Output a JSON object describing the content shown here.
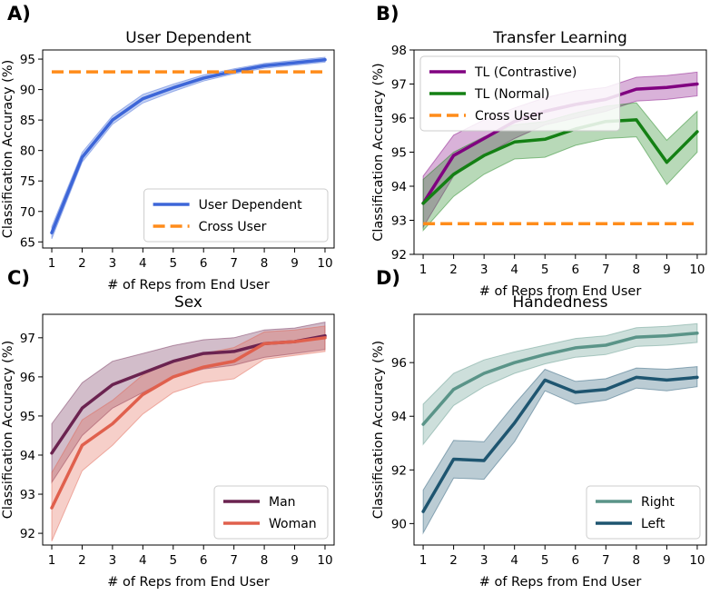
{
  "chart_data": [
    {
      "panel": "A)",
      "type": "line",
      "title": "User Dependent",
      "xlabel": "# of Reps from End User",
      "ylabel": "Classification Accuracy (%)",
      "xlim": [
        0.7,
        10.3
      ],
      "ylim": [
        64,
        96.5
      ],
      "xticks": [
        1,
        2,
        3,
        4,
        5,
        6,
        7,
        8,
        9,
        10
      ],
      "yticks": [
        65,
        70,
        75,
        80,
        85,
        90,
        95
      ],
      "legend_position": "lower-right",
      "x": [
        1,
        2,
        3,
        4,
        5,
        6,
        7,
        8,
        9,
        10
      ],
      "series": [
        {
          "name": "User Dependent",
          "color": "#3d66d8",
          "style": "solid",
          "values": [
            66.5,
            78.9,
            85.0,
            88.5,
            90.3,
            91.9,
            93.0,
            93.9,
            94.4,
            94.9
          ],
          "lower": [
            65.5,
            78.1,
            84.3,
            87.8,
            89.7,
            91.4,
            92.6,
            93.5,
            94.0,
            94.5
          ],
          "upper": [
            67.5,
            79.7,
            85.7,
            89.2,
            90.9,
            92.4,
            93.4,
            94.3,
            94.8,
            95.3
          ]
        },
        {
          "name": "Cross User",
          "color": "#ff8c1a",
          "style": "dashed",
          "values": [
            92.9,
            92.9,
            92.9,
            92.9,
            92.9,
            92.9,
            92.9,
            92.9,
            92.9,
            92.9
          ]
        }
      ]
    },
    {
      "panel": "B)",
      "type": "line",
      "title": "Transfer Learning",
      "xlabel": "# of Reps from End User",
      "ylabel": "Classification Accuracy (%)",
      "xlim": [
        0.7,
        10.3
      ],
      "ylim": [
        92,
        98
      ],
      "xticks": [
        1,
        2,
        3,
        4,
        5,
        6,
        7,
        8,
        9,
        10
      ],
      "yticks": [
        92,
        93,
        94,
        95,
        96,
        97,
        98
      ],
      "legend_position": "upper-left",
      "x": [
        1,
        2,
        3,
        4,
        5,
        6,
        7,
        8,
        9,
        10
      ],
      "series": [
        {
          "name": "TL (Contrastive)",
          "color": "#800080",
          "style": "solid",
          "values": [
            93.5,
            94.9,
            95.4,
            95.9,
            96.2,
            96.4,
            96.55,
            96.85,
            96.9,
            97.0
          ],
          "lower": [
            92.8,
            94.3,
            94.9,
            95.4,
            95.8,
            96.0,
            96.2,
            96.5,
            96.55,
            96.65
          ],
          "upper": [
            94.3,
            95.5,
            95.95,
            96.3,
            96.6,
            96.8,
            96.9,
            97.2,
            97.25,
            97.35
          ]
        },
        {
          "name": "TL (Normal)",
          "color": "#148014",
          "style": "solid",
          "values": [
            93.5,
            94.35,
            94.9,
            95.3,
            95.38,
            95.68,
            95.9,
            95.95,
            94.7,
            95.6
          ],
          "lower": [
            92.7,
            93.7,
            94.35,
            94.8,
            94.85,
            95.2,
            95.4,
            95.45,
            94.05,
            95.0
          ],
          "upper": [
            94.2,
            95.0,
            95.45,
            95.8,
            95.9,
            96.15,
            96.35,
            96.45,
            95.35,
            96.2
          ]
        },
        {
          "name": "Cross User",
          "color": "#ff8c1a",
          "style": "dashed",
          "values": [
            92.9,
            92.9,
            92.9,
            92.9,
            92.9,
            92.9,
            92.9,
            92.9,
            92.9,
            92.9
          ]
        }
      ]
    },
    {
      "panel": "C)",
      "type": "line",
      "title": "Sex",
      "xlabel": "# of Reps from End User",
      "ylabel": "Classification Accuracy (%)",
      "xlim": [
        0.7,
        10.3
      ],
      "ylim": [
        91.7,
        97.6
      ],
      "xticks": [
        1,
        2,
        3,
        4,
        5,
        6,
        7,
        8,
        9,
        10
      ],
      "yticks": [
        92,
        93,
        94,
        95,
        96,
        97
      ],
      "legend_position": "lower-right",
      "x": [
        1,
        2,
        3,
        4,
        5,
        6,
        7,
        8,
        9,
        10
      ],
      "series": [
        {
          "name": "Man",
          "color": "#6b2350",
          "style": "solid",
          "values": [
            94.05,
            95.2,
            95.8,
            96.1,
            96.4,
            96.6,
            96.65,
            96.85,
            96.9,
            97.05
          ],
          "lower": [
            93.3,
            94.5,
            95.2,
            95.6,
            96.0,
            96.2,
            96.3,
            96.5,
            96.6,
            96.7
          ],
          "upper": [
            94.8,
            95.85,
            96.4,
            96.6,
            96.8,
            96.95,
            97.0,
            97.2,
            97.25,
            97.4
          ]
        },
        {
          "name": "Woman",
          "color": "#e0604d",
          "style": "solid",
          "values": [
            92.65,
            94.25,
            94.8,
            95.55,
            96.0,
            96.25,
            96.4,
            96.85,
            96.9,
            97.0
          ],
          "lower": [
            91.8,
            93.6,
            94.25,
            95.05,
            95.6,
            95.85,
            95.95,
            96.45,
            96.55,
            96.65
          ],
          "upper": [
            93.55,
            94.9,
            95.4,
            96.05,
            96.4,
            96.6,
            96.75,
            97.15,
            97.2,
            97.3
          ]
        }
      ]
    },
    {
      "panel": "D)",
      "type": "line",
      "title": "Handedness",
      "xlabel": "# of Reps from End User",
      "ylabel": "Classification Accuracy (%)",
      "xlim": [
        0.7,
        10.3
      ],
      "ylim": [
        89.2,
        97.8
      ],
      "xticks": [
        1,
        2,
        3,
        4,
        5,
        6,
        7,
        8,
        9,
        10
      ],
      "yticks": [
        90,
        92,
        94,
        96
      ],
      "legend_position": "lower-right",
      "x": [
        1,
        2,
        3,
        4,
        5,
        6,
        7,
        8,
        9,
        10
      ],
      "series": [
        {
          "name": "Right",
          "color": "#5a9488",
          "style": "solid",
          "values": [
            93.7,
            95.0,
            95.6,
            96.0,
            96.3,
            96.55,
            96.65,
            96.95,
            97.0,
            97.1
          ],
          "lower": [
            92.95,
            94.4,
            95.1,
            95.6,
            95.95,
            96.2,
            96.3,
            96.6,
            96.65,
            96.75
          ],
          "upper": [
            94.45,
            95.6,
            96.1,
            96.4,
            96.65,
            96.9,
            97.0,
            97.3,
            97.35,
            97.45
          ]
        },
        {
          "name": "Left",
          "color": "#1e5570",
          "style": "solid",
          "values": [
            90.45,
            92.4,
            92.35,
            93.75,
            95.35,
            94.9,
            95.0,
            95.45,
            95.35,
            95.45
          ],
          "lower": [
            89.65,
            91.7,
            91.65,
            93.05,
            94.95,
            94.45,
            94.6,
            95.05,
            94.95,
            95.1
          ],
          "upper": [
            91.25,
            93.1,
            93.05,
            94.45,
            95.75,
            95.3,
            95.4,
            95.8,
            95.75,
            95.85
          ]
        }
      ]
    }
  ]
}
